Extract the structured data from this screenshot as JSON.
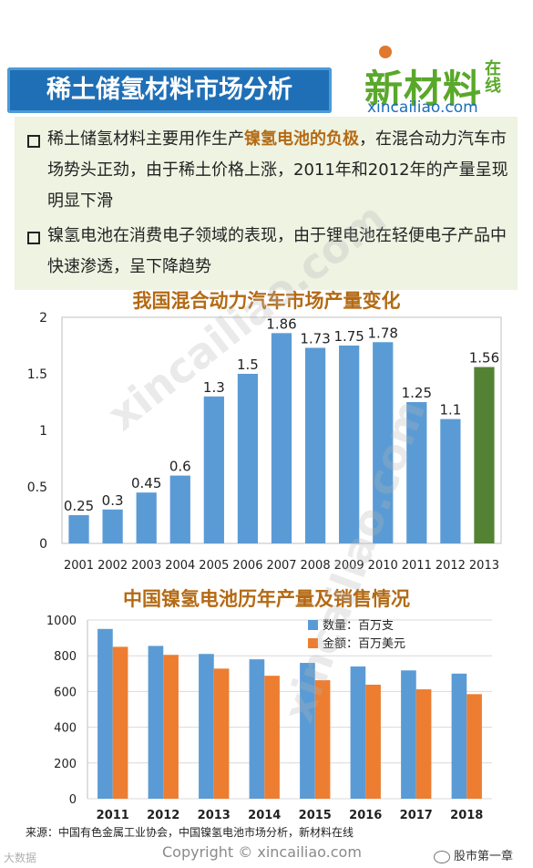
{
  "header": {
    "title": "稀土储氢材料市场分析",
    "logo_main": "新材料",
    "logo_side": "在线",
    "logo_url": "xincailiao.com"
  },
  "bullets": [
    {
      "pre": "稀土储氢材料主要用作生产",
      "highlight": "镍氢电池的负极",
      "post": "，在混合动力汽车市场势头正劲，由于稀土价格上涨，2011年和2012年的产量呈现明显下滑"
    },
    {
      "pre": "镍氢电池在消费电子领域的表现，由于锂电池在轻便电子产品中快速渗透，呈下降趋势",
      "highlight": "",
      "post": ""
    }
  ],
  "chart_data": [
    {
      "type": "bar",
      "title": "我国混合动力汽车市场产量变化",
      "categories": [
        "2001",
        "2002",
        "2003",
        "2004",
        "2005",
        "2006",
        "2007",
        "2008",
        "2009",
        "2010",
        "2011",
        "2012",
        "2013"
      ],
      "values": [
        0.25,
        0.3,
        0.45,
        0.6,
        1.3,
        1.5,
        1.86,
        1.73,
        1.75,
        1.78,
        1.25,
        1.1,
        1.56
      ],
      "data_labels": [
        "0.25",
        "0.3",
        "0.45",
        "0.6",
        "1.3",
        "1.5",
        "1.86",
        "1.73",
        "1.75",
        "1.78",
        "1.25",
        "1.1",
        "1.56"
      ],
      "ylim": [
        0,
        2
      ],
      "yticks": [
        "0",
        "0.5",
        "1",
        "1.5",
        "2"
      ],
      "colors": [
        "#5b9bd5",
        "#5b9bd5",
        "#5b9bd5",
        "#5b9bd5",
        "#5b9bd5",
        "#5b9bd5",
        "#5b9bd5",
        "#5b9bd5",
        "#5b9bd5",
        "#5b9bd5",
        "#5b9bd5",
        "#5b9bd5",
        "#548235"
      ],
      "grid": false,
      "xlabel": "",
      "ylabel": ""
    },
    {
      "type": "bar",
      "title": "中国镍氢电池历年产量及销售情况",
      "categories": [
        "2011",
        "2012",
        "2013",
        "2014",
        "2015",
        "2016",
        "2017",
        "2018"
      ],
      "series": [
        {
          "name": "数量：百万支",
          "color": "#5b9bd5",
          "values": [
            950,
            855,
            810,
            780,
            760,
            740,
            718,
            700
          ]
        },
        {
          "name": "金额：百万美元",
          "color": "#ed7d31",
          "values": [
            850,
            805,
            728,
            688,
            663,
            638,
            612,
            585
          ]
        }
      ],
      "ylim": [
        0,
        1000
      ],
      "yticks": [
        "0",
        "200",
        "400",
        "600",
        "800",
        "1000"
      ],
      "legend": "top-right",
      "grid": true,
      "xlabel": "",
      "ylabel": ""
    }
  ],
  "footer": {
    "source": "来源：中国有色金属工业协会，中国镍氢电池市场分析，新材料在线",
    "copyright": "Copyright © xincailiao.com",
    "watermark_left": "大数据",
    "watermark_right": "股市第一章"
  },
  "watermark_text": "xincailiao.com"
}
